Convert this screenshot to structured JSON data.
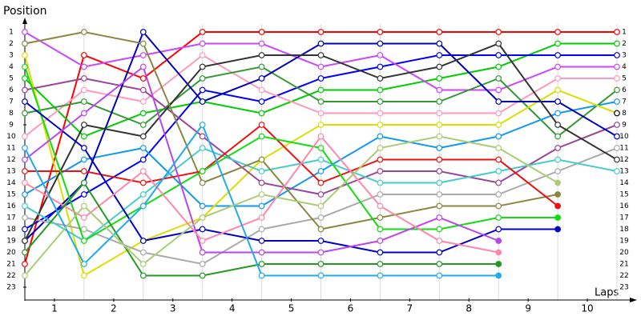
{
  "chart_data": {
    "type": "bump",
    "y_label": "Position",
    "x_label": "Laps",
    "x": [
      0,
      1,
      2,
      3,
      4,
      5,
      6,
      7,
      8,
      9,
      10
    ],
    "xlim": [
      0,
      10
    ],
    "xticks": [
      {
        "value": 0.5,
        "label": "1"
      },
      {
        "value": 1.5,
        "label": "2"
      },
      {
        "value": 2.5,
        "label": "3"
      },
      {
        "value": 3.5,
        "label": "4"
      },
      {
        "value": 4.5,
        "label": "5"
      },
      {
        "value": 5.5,
        "label": "6"
      },
      {
        "value": 6.5,
        "label": "7"
      },
      {
        "value": 7.5,
        "label": "8"
      },
      {
        "value": 8.5,
        "label": "9"
      },
      {
        "value": 9.5,
        "label": "10"
      }
    ],
    "ylim": [
      0,
      24
    ],
    "y_inverted": true,
    "yticks": [
      1,
      2,
      3,
      4,
      5,
      6,
      7,
      8,
      9,
      10,
      11,
      12,
      13,
      14,
      15,
      16,
      17,
      18,
      19,
      20,
      21,
      22,
      23
    ],
    "grid": true,
    "series": [
      {
        "color": "#ff0000",
        "values": [
          21,
          3,
          5,
          1,
          1,
          1,
          1,
          1,
          1,
          1,
          1
        ]
      },
      {
        "color": "#00cc00",
        "values": [
          5,
          10,
          8,
          7,
          8,
          6,
          6,
          5,
          4,
          2,
          2
        ]
      },
      {
        "color": "#0000ff",
        "values": [
          18,
          15,
          12,
          6,
          7,
          5,
          4,
          3,
          3,
          3,
          3
        ]
      },
      {
        "color": "#cc44ff",
        "values": [
          1,
          4,
          3,
          2,
          2,
          4,
          3,
          6,
          6,
          4,
          4
        ]
      },
      {
        "color": "#ff99bb",
        "values": [
          10,
          6,
          7,
          3,
          6,
          8,
          8,
          8,
          8,
          5,
          5
        ]
      },
      {
        "color": "#339933",
        "values": [
          8,
          7,
          9,
          5,
          4,
          7,
          7,
          7,
          5,
          10,
          6
        ]
      },
      {
        "color": "#1199ee",
        "values": [
          15,
          12,
          11,
          16,
          16,
          13,
          10,
          11,
          10,
          8,
          7
        ]
      },
      {
        "color": "#dddd00",
        "values": [
          3,
          22,
          19,
          17,
          12,
          9,
          9,
          9,
          9,
          6,
          8
        ]
      },
      {
        "color": "#994499",
        "values": [
          6,
          5,
          6,
          10,
          14,
          15,
          13,
          13,
          14,
          11,
          9
        ]
      },
      {
        "color": "#0000bb",
        "values": [
          19,
          14,
          1,
          7,
          5,
          2,
          2,
          2,
          7,
          7,
          10
        ]
      },
      {
        "color": "#aaaaaa",
        "values": [
          17,
          18,
          20,
          21,
          18,
          17,
          15,
          15,
          15,
          13,
          11
        ]
      },
      {
        "color": "#333333",
        "values": [
          19,
          9,
          10,
          4,
          3,
          3,
          5,
          4,
          2,
          9,
          12
        ]
      },
      {
        "color": "#44cccc",
        "values": [
          16,
          19,
          15,
          11,
          13,
          12,
          14,
          14,
          13,
          12,
          13
        ]
      },
      {
        "color": "#888844",
        "values": [
          2,
          1,
          2,
          14,
          12,
          18,
          17,
          16,
          16,
          15,
          null
        ]
      },
      {
        "color": "#ee1111",
        "values": [
          13,
          13,
          14,
          13,
          9,
          14,
          12,
          12,
          12,
          16,
          null
        ]
      },
      {
        "color": "#11dd11",
        "values": [
          4,
          19,
          16,
          13,
          10,
          11,
          18,
          18,
          17,
          17,
          null
        ]
      },
      {
        "color": "#0000cc",
        "values": [
          7,
          11,
          19,
          18,
          19,
          19,
          20,
          20,
          18,
          18,
          null
        ]
      },
      {
        "color": "#bb44ee",
        "values": [
          12,
          8,
          4,
          20,
          20,
          20,
          19,
          17,
          19,
          null,
          null
        ]
      },
      {
        "color": "#ff88aa",
        "values": [
          14,
          17,
          13,
          19,
          17,
          10,
          16,
          19,
          20,
          null,
          null
        ]
      },
      {
        "color": "#229922",
        "values": [
          20,
          14,
          22,
          22,
          21,
          21,
          21,
          21,
          21,
          null,
          null
        ]
      },
      {
        "color": "#22aaee",
        "values": [
          11,
          21,
          16,
          9,
          22,
          22,
          22,
          22,
          22,
          null,
          null
        ]
      },
      {
        "color": "#aacc77",
        "values": [
          22,
          16,
          21,
          17,
          15,
          16,
          11,
          10,
          11,
          14,
          null
        ]
      }
    ]
  }
}
